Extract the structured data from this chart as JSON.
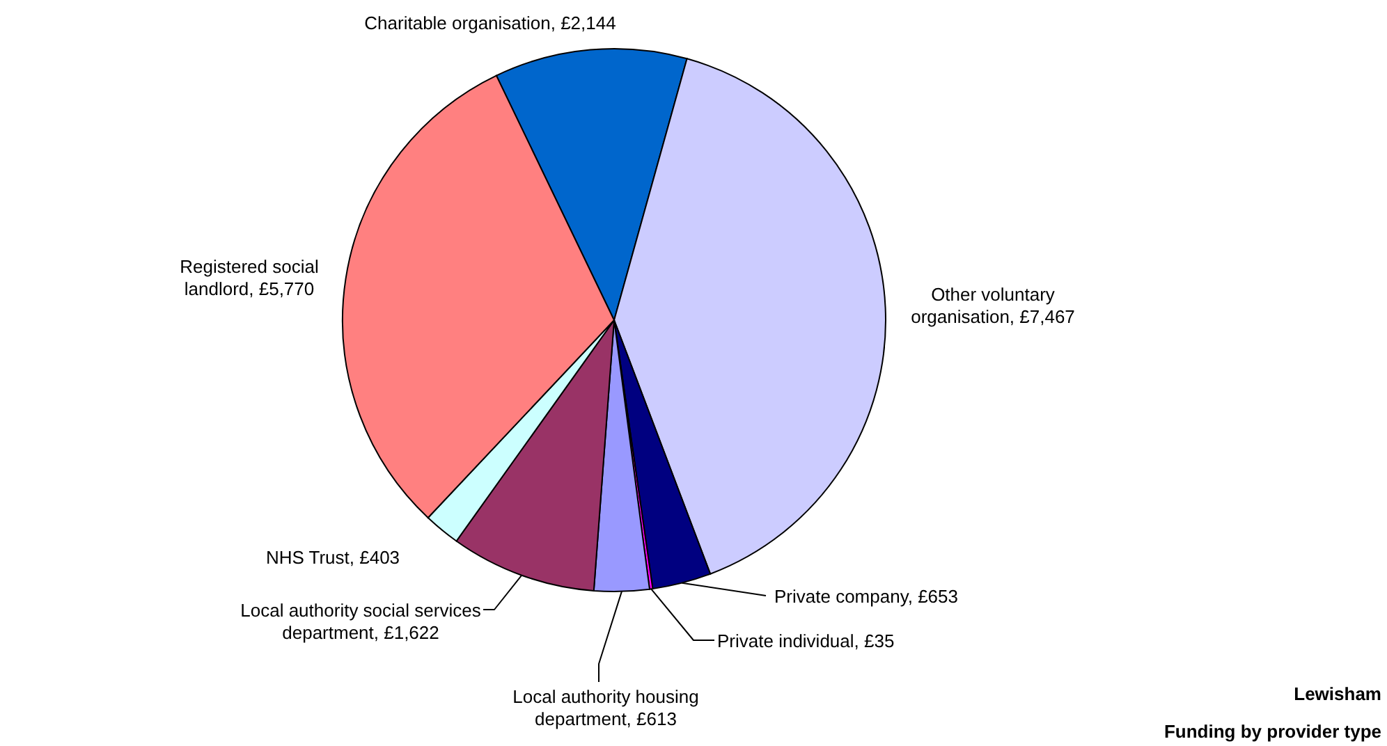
{
  "chart_data": {
    "type": "pie",
    "title": "Lewisham",
    "subtitle": "Funding by provider type",
    "categories": [
      "Charitable organisation",
      "Other voluntary organisation",
      "Private company",
      "Private individual",
      "Local authority housing department",
      "Local authority social services department",
      "NHS Trust",
      "Registered social landlord"
    ],
    "values": [
      2144,
      7467,
      653,
      35,
      613,
      1622,
      403,
      5770
    ],
    "colors": [
      "#0066cc",
      "#ccccff",
      "#000080",
      "#ff00ff",
      "#9999ff",
      "#993366",
      "#ccffff",
      "#ff8080"
    ],
    "value_labels": [
      "£2,144",
      "£7,467",
      "£653",
      "£35",
      "£613",
      "£1,622",
      "£403",
      "£5,770"
    ]
  }
}
